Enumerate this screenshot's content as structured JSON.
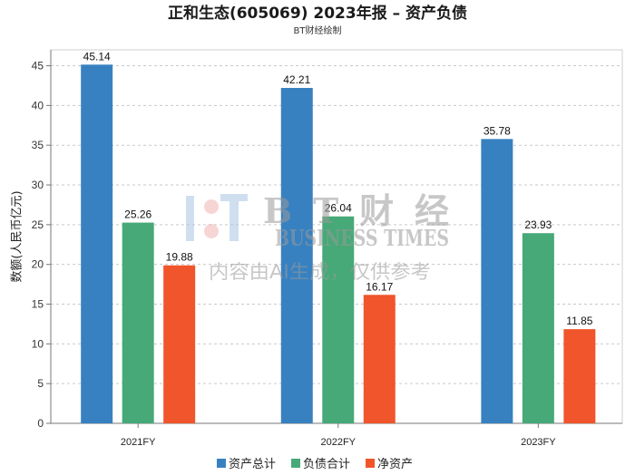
{
  "chart_data": {
    "type": "bar",
    "title": "正和生态(605069) 2023年报 – 资产负债",
    "subtitle": "BT财经绘制",
    "ylabel": "数额(人民币亿元)",
    "categories": [
      "2021FY",
      "2022FY",
      "2023FY"
    ],
    "series": [
      {
        "name": "资产总计",
        "color": "#3781c1",
        "values": [
          45.14,
          42.21,
          35.78
        ]
      },
      {
        "name": "负债合计",
        "color": "#46a977",
        "values": [
          25.26,
          26.04,
          23.93
        ]
      },
      {
        "name": "净资产",
        "color": "#f0552b",
        "values": [
          19.88,
          16.17,
          11.85
        ]
      }
    ],
    "ylim": [
      0,
      47
    ],
    "yticks": [
      0,
      5,
      10,
      15,
      20,
      25,
      30,
      35,
      40,
      45
    ],
    "grid": true,
    "legend": "bottom-center"
  },
  "watermark": {
    "brand": "BT财经",
    "english": "BUSINESS TIMES",
    "notice": "内容由AI生成，仅供参考"
  }
}
